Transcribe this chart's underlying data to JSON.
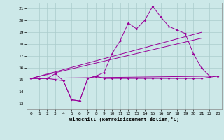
{
  "title": "",
  "xlabel": "Windchill (Refroidissement éolien,°C)",
  "bg_color": "#cce8e8",
  "grid_color": "#aacccc",
  "line_color": "#990099",
  "xlim": [
    -0.5,
    23.5
  ],
  "ylim": [
    12.5,
    21.5
  ],
  "xticks": [
    0,
    1,
    2,
    3,
    4,
    5,
    6,
    7,
    8,
    9,
    10,
    11,
    12,
    13,
    14,
    15,
    16,
    17,
    18,
    19,
    20,
    21,
    22,
    23
  ],
  "yticks": [
    13,
    14,
    15,
    16,
    17,
    18,
    19,
    20,
    21
  ],
  "series1_x": [
    0,
    1,
    2,
    3,
    4,
    5,
    6,
    7,
    8,
    9,
    10,
    11,
    12,
    13,
    14,
    15,
    16,
    17,
    18,
    19,
    20,
    21,
    22,
    23
  ],
  "series1_y": [
    15.1,
    15.1,
    15.1,
    15.0,
    14.9,
    13.3,
    13.2,
    15.1,
    15.3,
    15.1,
    15.1,
    15.1,
    15.1,
    15.1,
    15.1,
    15.1,
    15.1,
    15.1,
    15.1,
    15.1,
    15.1,
    15.1,
    15.2,
    15.3
  ],
  "series2_x": [
    0,
    1,
    2,
    3,
    4,
    5,
    6,
    7,
    8,
    9,
    10,
    11,
    12,
    13,
    14,
    15,
    16,
    17,
    18,
    19,
    20,
    21,
    22,
    23
  ],
  "series2_y": [
    15.1,
    15.1,
    15.1,
    15.5,
    14.9,
    13.3,
    13.2,
    15.1,
    15.3,
    15.6,
    17.2,
    18.3,
    19.8,
    19.3,
    20.0,
    21.2,
    20.3,
    19.5,
    19.2,
    18.9,
    17.2,
    16.0,
    15.3,
    15.3
  ],
  "trend1_x": [
    0,
    23
  ],
  "trend1_y": [
    15.1,
    15.3
  ],
  "trend2_x": [
    0,
    21
  ],
  "trend2_y": [
    15.1,
    19.0
  ],
  "trend3_x": [
    0,
    21
  ],
  "trend3_y": [
    15.1,
    18.5
  ]
}
